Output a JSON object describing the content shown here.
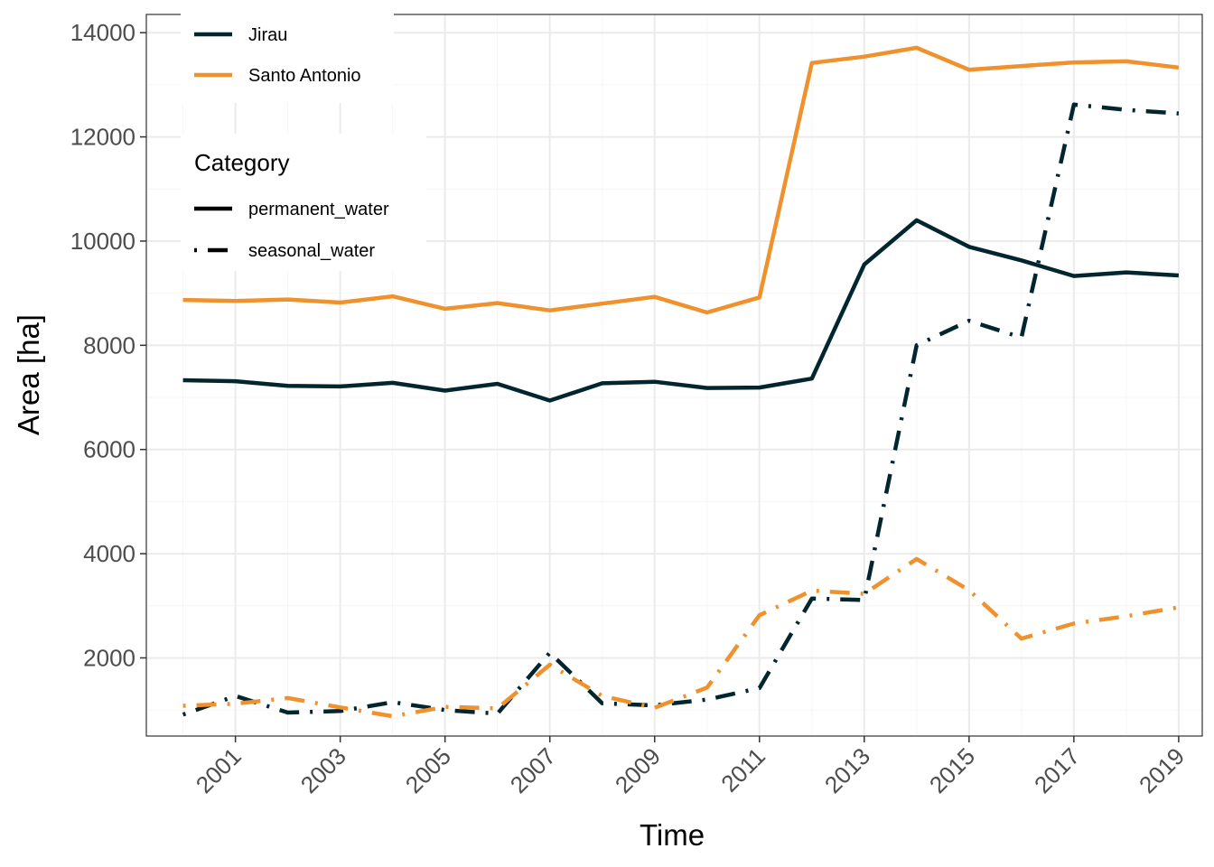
{
  "chart_data": {
    "type": "line",
    "title": "",
    "xlabel": "Time",
    "ylabel": "Area [ha]",
    "x": [
      2000,
      2001,
      2002,
      2003,
      2004,
      2005,
      2006,
      2007,
      2008,
      2009,
      2010,
      2011,
      2012,
      2013,
      2014,
      2015,
      2016,
      2017,
      2018,
      2019
    ],
    "x_ticks": [
      "2001",
      "2003",
      "2005",
      "2007",
      "2009",
      "2011",
      "2013",
      "2015",
      "2017",
      "2019"
    ],
    "y_ticks": [
      "2000",
      "4000",
      "6000",
      "8000",
      "10000",
      "12000",
      "14000"
    ],
    "xlim": [
      1999.3,
      2019.45
    ],
    "ylim": [
      500,
      14350
    ],
    "grid": true,
    "legend_placement": "top-left",
    "series": [
      {
        "name": "Jirau",
        "category": "permanent_water",
        "values": [
          7330,
          7310,
          7220,
          7210,
          7280,
          7130,
          7260,
          6940,
          7270,
          7300,
          7180,
          7190,
          7360,
          9550,
          10400,
          9890,
          9630,
          9330,
          9400,
          9340
        ]
      },
      {
        "name": "Santo Antonio",
        "category": "permanent_water",
        "values": [
          8870,
          8850,
          8880,
          8820,
          8940,
          8700,
          8810,
          8670,
          8800,
          8930,
          8630,
          8920,
          13420,
          13540,
          13710,
          13290,
          13360,
          13430,
          13450,
          13330
        ]
      },
      {
        "name": "Jirau",
        "category": "seasonal_water",
        "values": [
          910,
          1270,
          950,
          980,
          1150,
          1000,
          930,
          2100,
          1130,
          1090,
          1200,
          1420,
          3140,
          3110,
          8000,
          8470,
          8150,
          12620,
          12520,
          12450
        ]
      },
      {
        "name": "Santo Antonio",
        "category": "seasonal_water",
        "values": [
          1080,
          1120,
          1230,
          1050,
          880,
          1060,
          1030,
          1870,
          1270,
          1040,
          1430,
          2820,
          3290,
          3230,
          3900,
          3300,
          2370,
          2660,
          2800,
          2970
        ]
      }
    ]
  },
  "colors": {
    "Jirau": "#02262e",
    "Santo Antonio": "#ef922d",
    "grid_major": "#ebebeb",
    "grid_minor": "#f5f5f5",
    "panel_border": "#333333"
  },
  "legend": {
    "series": [
      {
        "label": "Jirau",
        "color": "#02262e"
      },
      {
        "label": "Santo Antonio",
        "color": "#ef922d"
      }
    ],
    "category_title": "Category",
    "categories": [
      {
        "label": "permanent_water",
        "linetype": "solid"
      },
      {
        "label": "seasonal_water",
        "linetype": "dotdash"
      }
    ]
  }
}
